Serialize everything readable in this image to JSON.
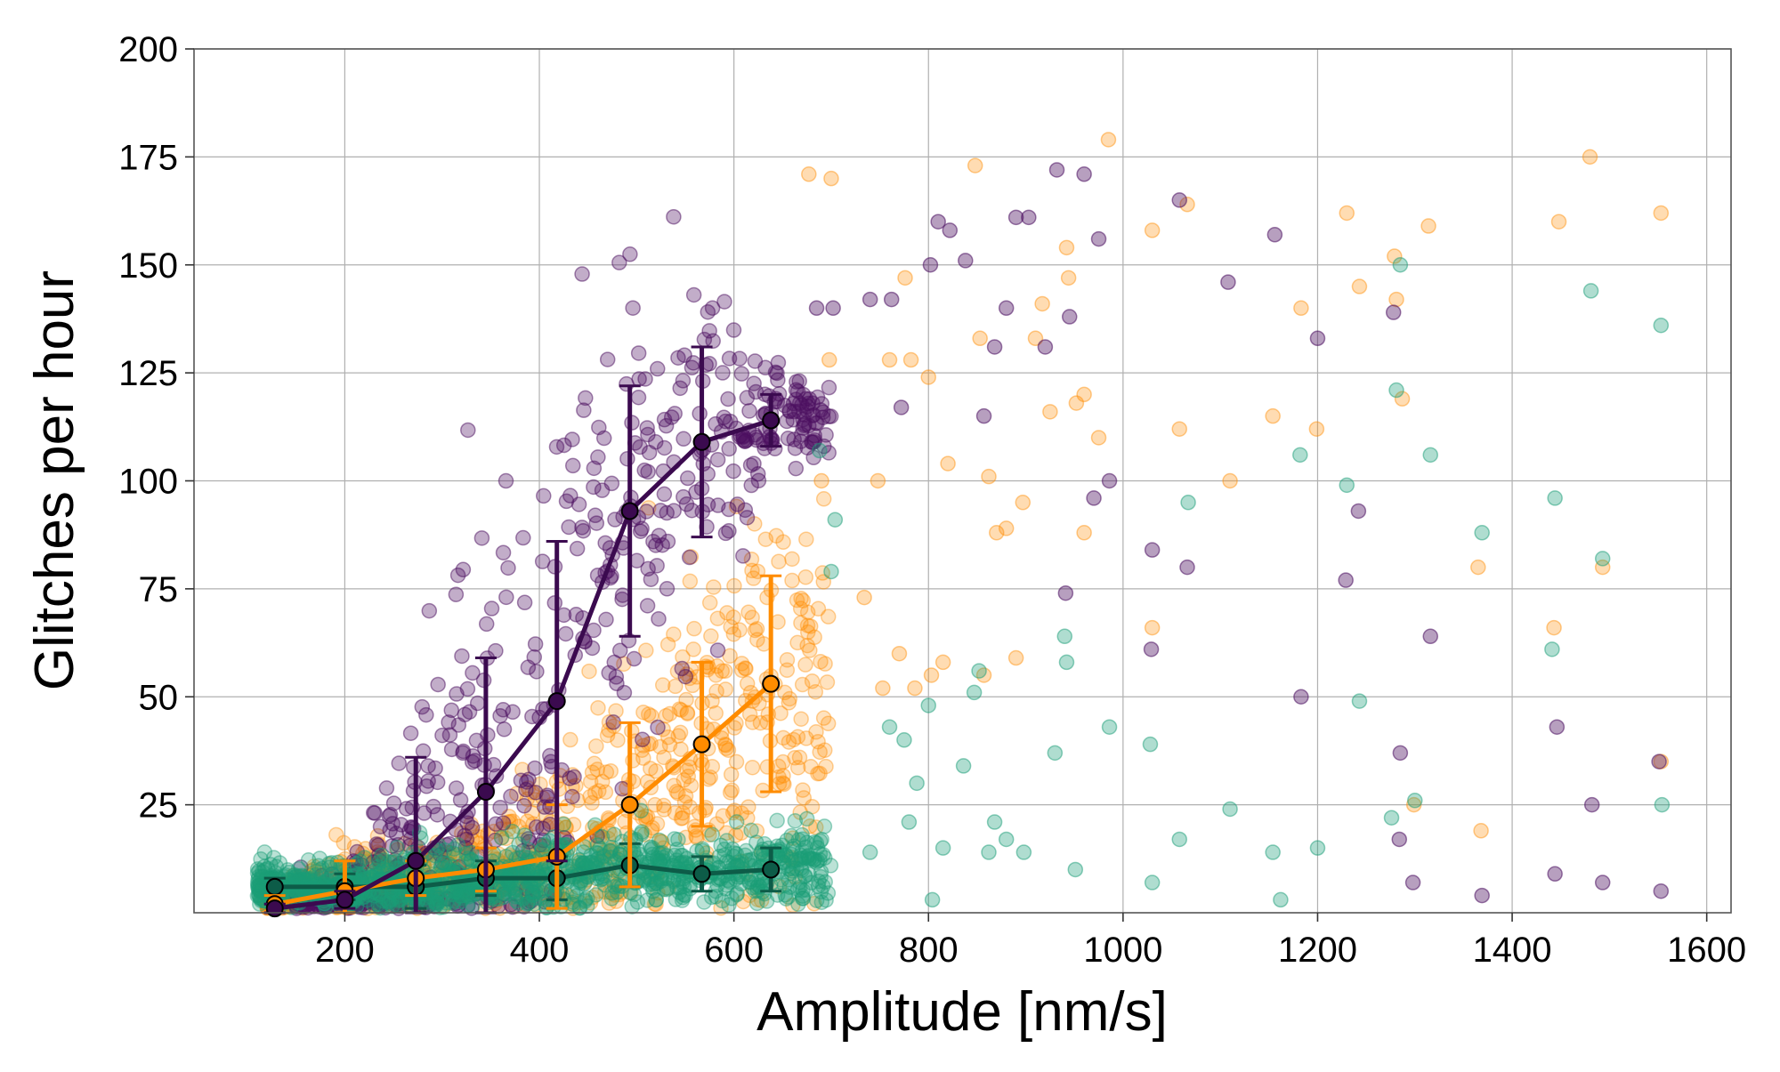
{
  "chart_data": {
    "type": "scatter",
    "title": "",
    "xlabel": "Amplitude [nm/s]",
    "ylabel": "Glitches per hour",
    "xlim": [
      45,
      1625
    ],
    "ylim": [
      0,
      200
    ],
    "x_ticks": [
      200,
      400,
      600,
      800,
      1000,
      1200,
      1400,
      1600
    ],
    "y_ticks": [
      25,
      50,
      75,
      100,
      125,
      150,
      175,
      200
    ],
    "grid": true,
    "legend": "none",
    "series": [
      {
        "color": "#4b0f60",
        "marker_alpha": 0.4,
        "scatter_cluster": {
          "x_range": [
            150,
            700
          ],
          "y_shape": "increasing",
          "count": 650
        },
        "scatter_sparse": [
          [
            685,
            140
          ],
          [
            702,
            140
          ],
          [
            740,
            142
          ],
          [
            772,
            117
          ],
          [
            810,
            160
          ],
          [
            822,
            158
          ],
          [
            857,
            115
          ],
          [
            890,
            161
          ],
          [
            903,
            161
          ],
          [
            932,
            172
          ],
          [
            960,
            171
          ],
          [
            975,
            156
          ],
          [
            986,
            100
          ],
          [
            1030,
            84
          ],
          [
            1058,
            165
          ],
          [
            1108,
            146
          ],
          [
            1156,
            157
          ],
          [
            1200,
            133
          ],
          [
            1242,
            93
          ],
          [
            1278,
            139
          ],
          [
            1285,
            37
          ],
          [
            1298,
            7
          ],
          [
            1316,
            64
          ],
          [
            1369,
            4
          ],
          [
            1446,
            43
          ],
          [
            1482,
            25
          ],
          [
            1493,
            7
          ],
          [
            1553,
            5
          ],
          [
            1551,
            35
          ],
          [
            1029,
            61
          ],
          [
            1066,
            80
          ],
          [
            1183,
            50
          ],
          [
            1229,
            77
          ],
          [
            762,
            142
          ],
          [
            802,
            150
          ],
          [
            838,
            151
          ],
          [
            868,
            131
          ],
          [
            880,
            140
          ],
          [
            920,
            131
          ],
          [
            945,
            138
          ],
          [
            970,
            96
          ],
          [
            941,
            74
          ],
          [
            1444,
            9
          ],
          [
            1284,
            17
          ]
        ],
        "binned_means": {
          "x": [
            128,
            200,
            273,
            345,
            418,
            493,
            567,
            638
          ],
          "y": [
            1,
            3,
            12,
            28,
            49,
            93,
            109,
            114
          ],
          "err": [
            1,
            2,
            24,
            31,
            37,
            29,
            22,
            6
          ]
        }
      },
      {
        "color": "#ff8c00",
        "marker_alpha": 0.3,
        "scatter_cluster": {
          "x_range": [
            120,
            700
          ],
          "y_shape": "increasing",
          "count": 900
        },
        "scatter_sparse": [
          [
            677,
            171
          ],
          [
            700,
            170
          ],
          [
            698,
            128
          ],
          [
            690,
            100
          ],
          [
            734,
            73
          ],
          [
            748,
            100
          ],
          [
            760,
            128
          ],
          [
            776,
            147
          ],
          [
            782,
            128
          ],
          [
            800,
            124
          ],
          [
            820,
            104
          ],
          [
            848,
            173
          ],
          [
            853,
            133
          ],
          [
            862,
            101
          ],
          [
            880,
            89
          ],
          [
            910,
            133
          ],
          [
            917,
            141
          ],
          [
            942,
            154
          ],
          [
            944,
            147
          ],
          [
            952,
            118
          ],
          [
            960,
            88
          ],
          [
            975,
            110
          ],
          [
            985,
            179
          ],
          [
            1030,
            158
          ],
          [
            1030,
            66
          ],
          [
            1058,
            112
          ],
          [
            1066,
            164
          ],
          [
            1110,
            100
          ],
          [
            1154,
            115
          ],
          [
            1183,
            140
          ],
          [
            1199,
            112
          ],
          [
            1230,
            162
          ],
          [
            1243,
            145
          ],
          [
            1279,
            152
          ],
          [
            1281,
            142
          ],
          [
            1287,
            119
          ],
          [
            1299,
            25
          ],
          [
            1314,
            159
          ],
          [
            1365,
            80
          ],
          [
            1368,
            19
          ],
          [
            1443,
            66
          ],
          [
            1448,
            160
          ],
          [
            1480,
            175
          ],
          [
            1493,
            80
          ],
          [
            1553,
            162
          ],
          [
            1553,
            35
          ],
          [
            753,
            52
          ],
          [
            770,
            60
          ],
          [
            786,
            52
          ],
          [
            803,
            55
          ],
          [
            815,
            58
          ],
          [
            857,
            55
          ],
          [
            870,
            88
          ],
          [
            890,
            59
          ],
          [
            897,
            95
          ],
          [
            925,
            116
          ],
          [
            960,
            120
          ]
        ],
        "binned_means": {
          "x": [
            128,
            200,
            273,
            345,
            418,
            493,
            567,
            638
          ],
          "y": [
            2,
            5,
            8,
            10,
            13,
            25,
            39,
            53
          ],
          "err": [
            2,
            7,
            4,
            5,
            12,
            19,
            19,
            25
          ]
        }
      },
      {
        "color": "#1b9e77",
        "marker_alpha": 0.35,
        "scatter_cluster": {
          "x_range": [
            110,
            700
          ],
          "y_shape": "flat",
          "count": 1100
        },
        "scatter_sparse": [
          [
            688,
            107
          ],
          [
            700,
            79
          ],
          [
            704,
            91
          ],
          [
            740,
            14
          ],
          [
            760,
            43
          ],
          [
            775,
            40
          ],
          [
            780,
            21
          ],
          [
            788,
            30
          ],
          [
            800,
            48
          ],
          [
            804,
            3
          ],
          [
            815,
            15
          ],
          [
            836,
            34
          ],
          [
            847,
            51
          ],
          [
            852,
            56
          ],
          [
            862,
            14
          ],
          [
            868,
            21
          ],
          [
            880,
            17
          ],
          [
            898,
            14
          ],
          [
            930,
            37
          ],
          [
            940,
            64
          ],
          [
            942,
            58
          ],
          [
            951,
            10
          ],
          [
            986,
            43
          ],
          [
            1028,
            39
          ],
          [
            1030,
            7
          ],
          [
            1058,
            17
          ],
          [
            1067,
            95
          ],
          [
            1110,
            24
          ],
          [
            1154,
            14
          ],
          [
            1162,
            3
          ],
          [
            1182,
            106
          ],
          [
            1200,
            15
          ],
          [
            1230,
            99
          ],
          [
            1243,
            49
          ],
          [
            1276,
            22
          ],
          [
            1281,
            121
          ],
          [
            1285,
            150
          ],
          [
            1300,
            26
          ],
          [
            1316,
            106
          ],
          [
            1369,
            88
          ],
          [
            1441,
            61
          ],
          [
            1444,
            96
          ],
          [
            1481,
            144
          ],
          [
            1493,
            82
          ],
          [
            1553,
            136
          ],
          [
            1554,
            25
          ]
        ],
        "binned_means": {
          "x": [
            128,
            200,
            273,
            345,
            418,
            493,
            567,
            638
          ],
          "y": [
            6,
            6,
            6,
            8,
            8,
            11,
            9,
            10
          ],
          "err": [
            2,
            3,
            5,
            4,
            5,
            5,
            4,
            5
          ]
        }
      }
    ]
  }
}
